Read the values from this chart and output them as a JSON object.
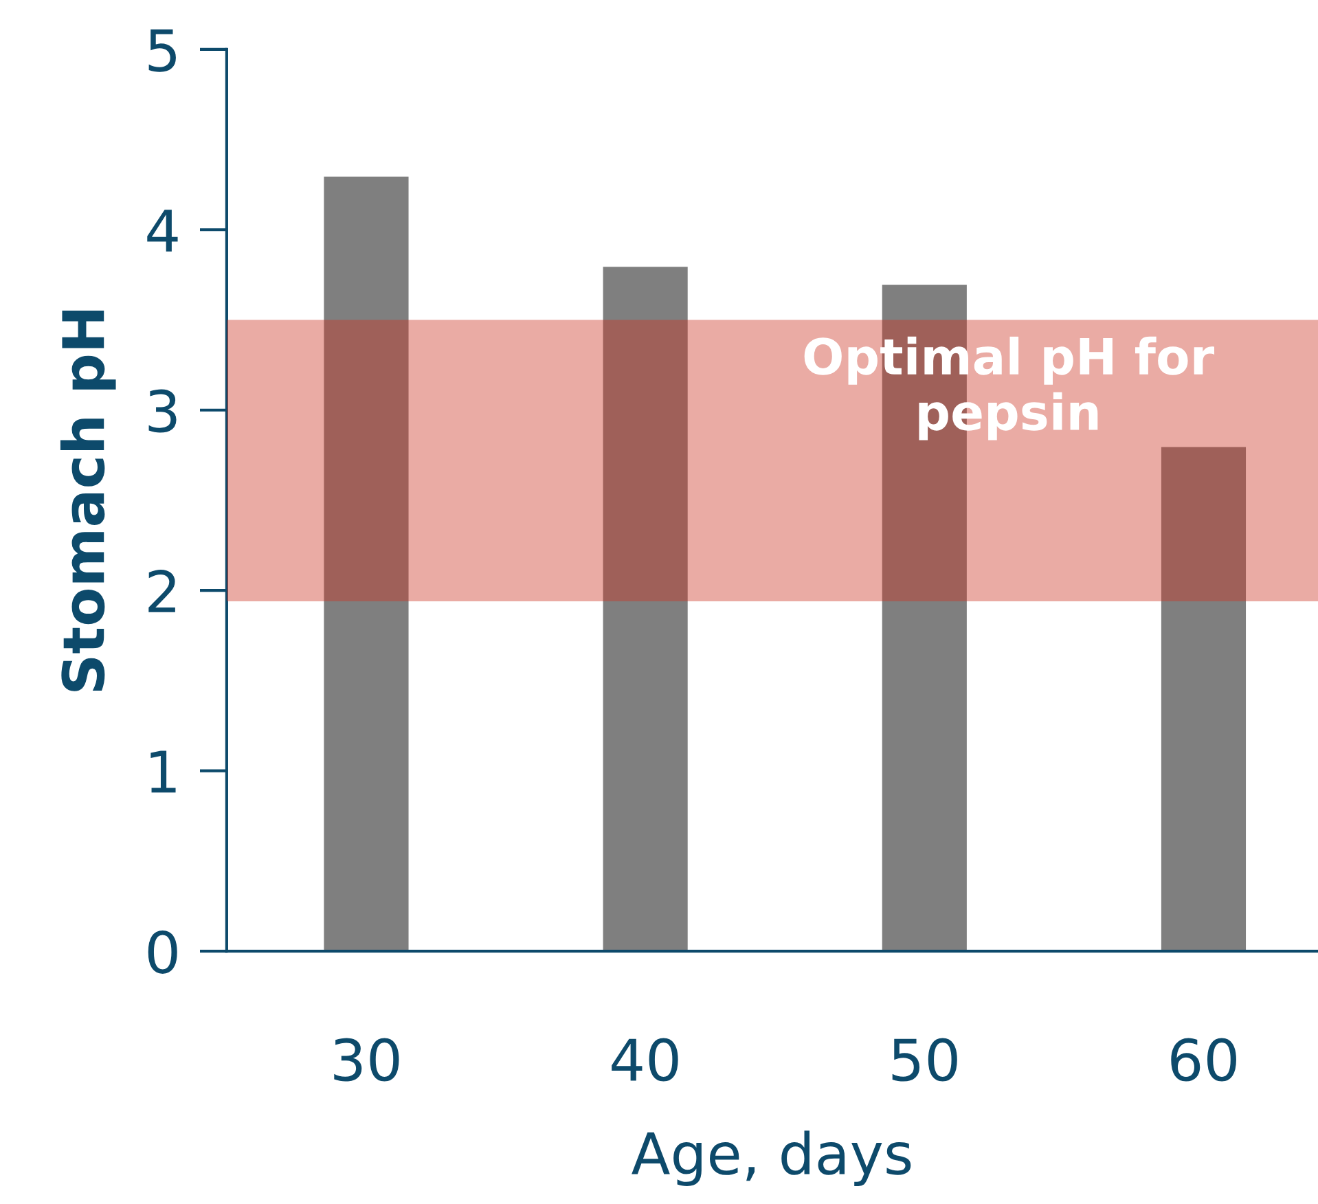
{
  "chart_data": {
    "type": "bar",
    "xlabel": "Age, days",
    "ylabel": "Stomach pH",
    "categories": [
      "30",
      "40",
      "50",
      "60"
    ],
    "values": [
      4.3,
      3.8,
      3.7,
      2.8
    ],
    "color": "#7f7f7f",
    "ylim": [
      0,
      5
    ],
    "yticks": [
      0,
      1,
      2,
      3,
      4,
      5
    ],
    "grid": false,
    "legend": false,
    "bands": [
      {
        "axis": "y",
        "from": 1.94,
        "to": 3.5,
        "label": "Optimal pH for\npepsin",
        "color": "#cd3825"
      }
    ]
  }
}
